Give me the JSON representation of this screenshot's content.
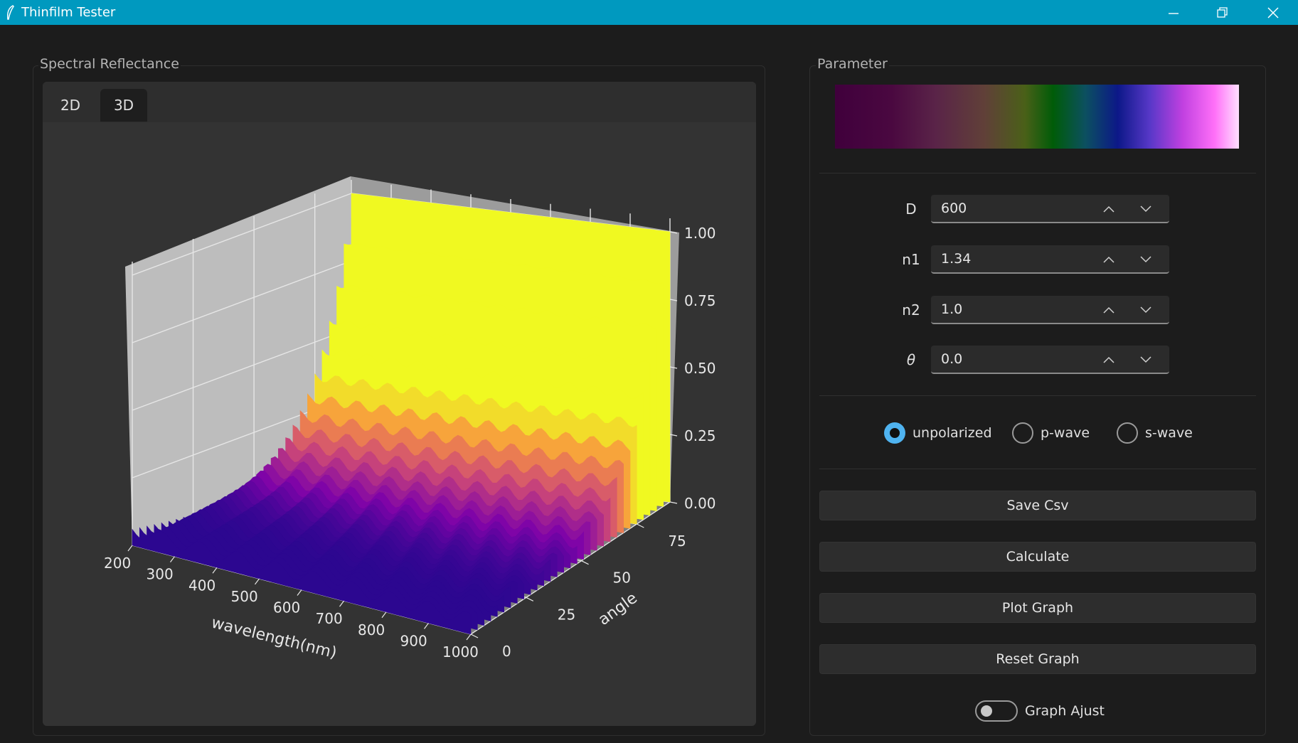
{
  "window": {
    "title": "Thinfilm Tester"
  },
  "plot_panel": {
    "group_label": "Spectral Reflectance",
    "tabs": [
      {
        "label": "2D"
      },
      {
        "label": "3D"
      }
    ],
    "active_tab": "3D",
    "axes": {
      "x": {
        "label": "wavelength(nm)",
        "ticks": [
          "200",
          "300",
          "400",
          "500",
          "600",
          "700",
          "800",
          "900",
          "1000"
        ]
      },
      "y": {
        "label": "angle",
        "ticks": [
          "0",
          "25",
          "50",
          "75"
        ]
      },
      "z": {
        "ticks": [
          "0.00",
          "0.25",
          "0.50",
          "0.75",
          "1.00"
        ]
      }
    },
    "colormap": "plasma"
  },
  "param_panel": {
    "group_label": "Parameter",
    "fields": [
      {
        "label": "D",
        "value": "600"
      },
      {
        "label": "n1",
        "value": "1.34"
      },
      {
        "label": "n2",
        "value": "1.0"
      },
      {
        "label": "θ",
        "value": "0.0"
      }
    ],
    "polarization": {
      "options": [
        {
          "label": "unpolarized"
        },
        {
          "label": "p-wave"
        },
        {
          "label": "s-wave"
        }
      ],
      "selected": "unpolarized"
    },
    "buttons": {
      "save_csv": "Save Csv",
      "calculate": "Calculate",
      "plot_graph": "Plot Graph",
      "reset_graph": "Reset Graph"
    },
    "toggle": {
      "label": "Graph Ajust",
      "on": false
    }
  },
  "colors": {
    "titlebar": "#0099bf",
    "accent": "#4fb3f0",
    "background": "#1c1c1c"
  }
}
